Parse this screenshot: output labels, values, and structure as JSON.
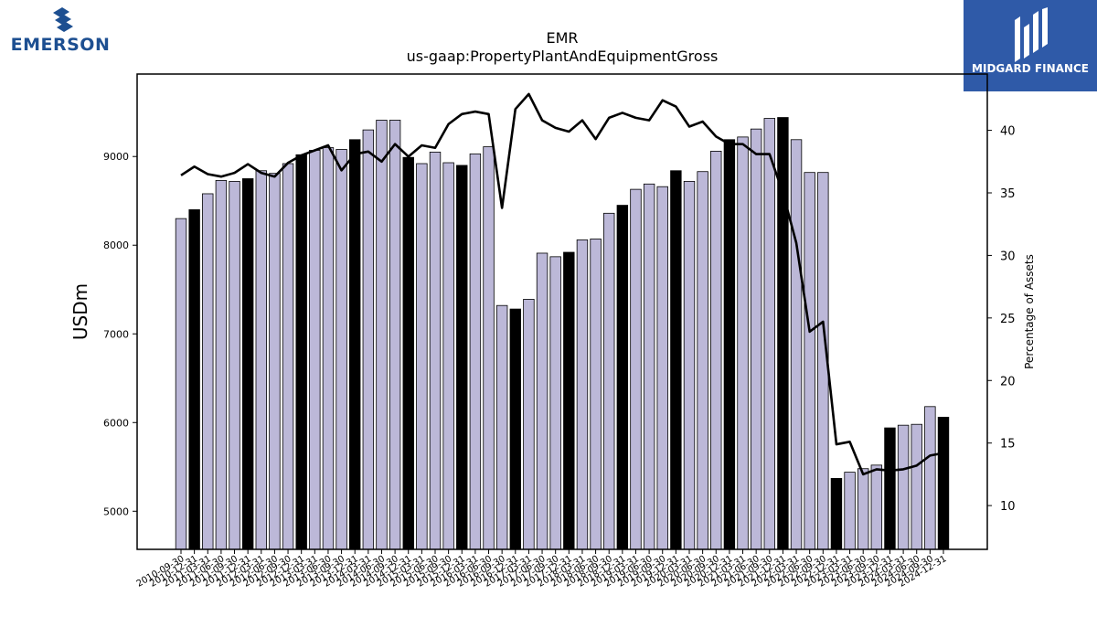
{
  "header": {
    "title": "EMR",
    "subtitle": "us-gaap:PropertyPlantAndEquipmentGross"
  },
  "logos": {
    "left_text": "EMERSON",
    "right_text": "MIDGARD FINANCE"
  },
  "colors": {
    "bar_default": "#bcb8d8",
    "bar_highlight": "#000000",
    "line": "#000000",
    "logo_blue": "#1d4f91",
    "midgard_bg": "#2f5aa8"
  },
  "chart_data": {
    "type": "bar",
    "title": "EMR",
    "subtitle": "us-gaap:PropertyPlantAndEquipmentGross",
    "ylabel": "USDm",
    "y2label": "Percentage of Assets",
    "ylim": [
      4570,
      9930
    ],
    "y2lim": [
      6.5,
      44.5
    ],
    "yticks": [
      5000,
      6000,
      7000,
      8000,
      9000
    ],
    "y2ticks": [
      10,
      15,
      20,
      25,
      30,
      35,
      40
    ],
    "categories": [
      "2010-09-30",
      "2010-12-31",
      "2011-03-31",
      "2011-06-30",
      "2011-09-30",
      "2011-12-31",
      "2012-03-31",
      "2012-06-30",
      "2012-09-30",
      "2012-12-31",
      "2013-03-31",
      "2013-06-30",
      "2013-09-30",
      "2013-12-31",
      "2014-03-31",
      "2014-06-30",
      "2014-09-30",
      "2014-12-31",
      "2015-03-31",
      "2015-06-30",
      "2015-09-30",
      "2015-12-31",
      "2016-03-31",
      "2016-06-30",
      "2016-09-30",
      "2016-12-31",
      "2017-03-31",
      "2017-06-30",
      "2017-09-30",
      "2017-12-31",
      "2018-03-31",
      "2018-06-30",
      "2018-09-30",
      "2018-12-31",
      "2019-03-31",
      "2019-06-30",
      "2019-09-30",
      "2019-12-31",
      "2020-03-31",
      "2020-06-30",
      "2020-09-30",
      "2020-12-31",
      "2021-03-31",
      "2021-06-30",
      "2021-09-30",
      "2021-12-31",
      "2022-03-31",
      "2022-06-30",
      "2022-09-30",
      "2022-12-31",
      "2023-03-31",
      "2023-06-30",
      "2023-09-30",
      "2023-12-31",
      "2024-03-31",
      "2024-06-30",
      "2024-09-30",
      "2024-12-31"
    ],
    "visible_tick_labels": [
      "2010-09-30",
      "2010-12-31",
      "2011-03-31",
      "2011-06-30",
      "2011-09-30",
      "2011-12-31",
      "2012-03-31",
      "2012-06-30",
      "2012-09-30",
      "2012-12-31",
      "2013-03-31",
      "2013-06-30",
      "2013-09-30",
      "2013-12-31",
      "2014-03-31",
      "2014-06-30",
      "2014-09-30",
      "2014-12-31",
      "2015-03-31",
      "2015-06-30",
      "2015-09-30",
      "2015-12-31",
      "2016-03-31",
      "2016-06-30",
      "2016-09-30",
      "2016-12-31",
      "2017-03-31",
      "2017-06-30",
      "2017-09-30",
      "2017-12-31",
      "2018-03-31",
      "2018-06-30",
      "2018-09-30",
      "2018-12-31",
      "2019-03-31",
      "2019-06-30",
      "2019-09-30",
      "2019-12-31",
      "2020-03-31",
      "2020-06-30",
      "2020-09-30",
      "2020-12-31",
      "2021-03-31",
      "2021-06-30",
      "2021-09-30",
      "2021-12-31",
      "2022-03-31",
      "2022-06-30",
      "2022-09-30",
      "2022-12-31",
      "2023-03-31",
      "2023-06-30",
      "2023-09-30",
      "2023-12-31",
      "2024-03-31",
      "2024-06-30",
      "2024-09-30",
      "2024-12-31"
    ],
    "series": [
      {
        "name": "PropertyPlantAndEquipmentGross",
        "type": "bar",
        "values": [
          8300,
          8400,
          8580,
          8730,
          8720,
          8750,
          8840,
          8810,
          8920,
          9020,
          9070,
          9100,
          9080,
          9190,
          9300,
          9410,
          9410,
          8990,
          8920,
          9050,
          8930,
          8900,
          9030,
          9110,
          7320,
          7280,
          7390,
          7910,
          7870,
          7920,
          8060,
          8070,
          8360,
          8450,
          8630,
          8690,
          8660,
          8840,
          8720,
          8830,
          9060,
          9190,
          9220,
          9310,
          9430,
          9440,
          9190,
          8820,
          8820,
          5370,
          5440,
          5480,
          5520,
          5940,
          5970,
          5980,
          6180,
          6060
        ],
        "highlight": [
          false,
          true,
          false,
          false,
          false,
          true,
          false,
          false,
          false,
          true,
          false,
          false,
          false,
          true,
          false,
          false,
          false,
          true,
          false,
          false,
          false,
          true,
          false,
          false,
          false,
          true,
          false,
          false,
          false,
          true,
          false,
          false,
          false,
          true,
          false,
          false,
          false,
          true,
          false,
          false,
          false,
          true,
          false,
          false,
          false,
          true,
          false,
          false,
          false,
          true,
          false,
          false,
          false,
          true,
          false,
          false,
          false,
          true
        ]
      },
      {
        "name": "Percentage of Assets",
        "type": "line",
        "axis": "right",
        "values": [
          36.4,
          37.1,
          36.5,
          36.3,
          36.6,
          37.3,
          36.6,
          36.3,
          37.4,
          38.0,
          38.4,
          38.8,
          36.8,
          38.1,
          38.3,
          37.5,
          38.9,
          37.9,
          38.8,
          38.6,
          40.5,
          41.3,
          41.5,
          41.3,
          33.8,
          41.7,
          42.9,
          40.8,
          40.2,
          39.9,
          40.8,
          39.3,
          41.0,
          41.4,
          41.0,
          40.8,
          42.4,
          41.9,
          40.3,
          40.7,
          39.5,
          38.9,
          38.9,
          38.1,
          38.1,
          35.0,
          31.0,
          23.9,
          24.7,
          14.9,
          15.1,
          12.5,
          12.9,
          12.8,
          12.9,
          13.2,
          14.0,
          14.2
        ]
      }
    ],
    "grid": false,
    "legend": "none"
  }
}
